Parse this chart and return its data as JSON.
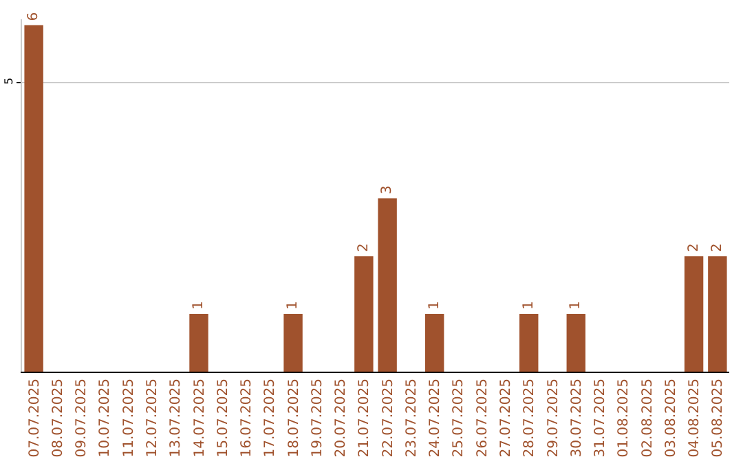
{
  "chart_data": {
    "type": "bar",
    "categories": [
      "07.07.2025",
      "08.07.2025",
      "09.07.2025",
      "10.07.2025",
      "11.07.2025",
      "12.07.2025",
      "13.07.2025",
      "14.07.2025",
      "15.07.2025",
      "16.07.2025",
      "17.07.2025",
      "18.07.2025",
      "19.07.2025",
      "20.07.2025",
      "21.07.2025",
      "22.07.2025",
      "23.07.2025",
      "24.07.2025",
      "25.07.2025",
      "26.07.2025",
      "27.07.2025",
      "28.07.2025",
      "29.07.2025",
      "30.07.2025",
      "31.07.2025",
      "01.08.2025",
      "02.08.2025",
      "03.08.2025",
      "04.08.2025",
      "05.08.2025"
    ],
    "values": [
      6,
      0,
      0,
      0,
      0,
      0,
      0,
      1,
      0,
      0,
      0,
      1,
      0,
      0,
      2,
      3,
      0,
      1,
      0,
      0,
      0,
      1,
      0,
      1,
      0,
      0,
      0,
      0,
      2,
      2
    ],
    "value_labels": [
      "6",
      null,
      null,
      null,
      null,
      null,
      null,
      "1",
      null,
      null,
      null,
      "1",
      null,
      null,
      "2",
      "3",
      null,
      "1",
      null,
      null,
      null,
      "1",
      null,
      "1",
      null,
      null,
      null,
      null,
      "2",
      "2"
    ],
    "color": "#a0522d",
    "ylim": [
      0,
      6.1
    ],
    "yticks": [
      5
    ],
    "grid": "y"
  }
}
